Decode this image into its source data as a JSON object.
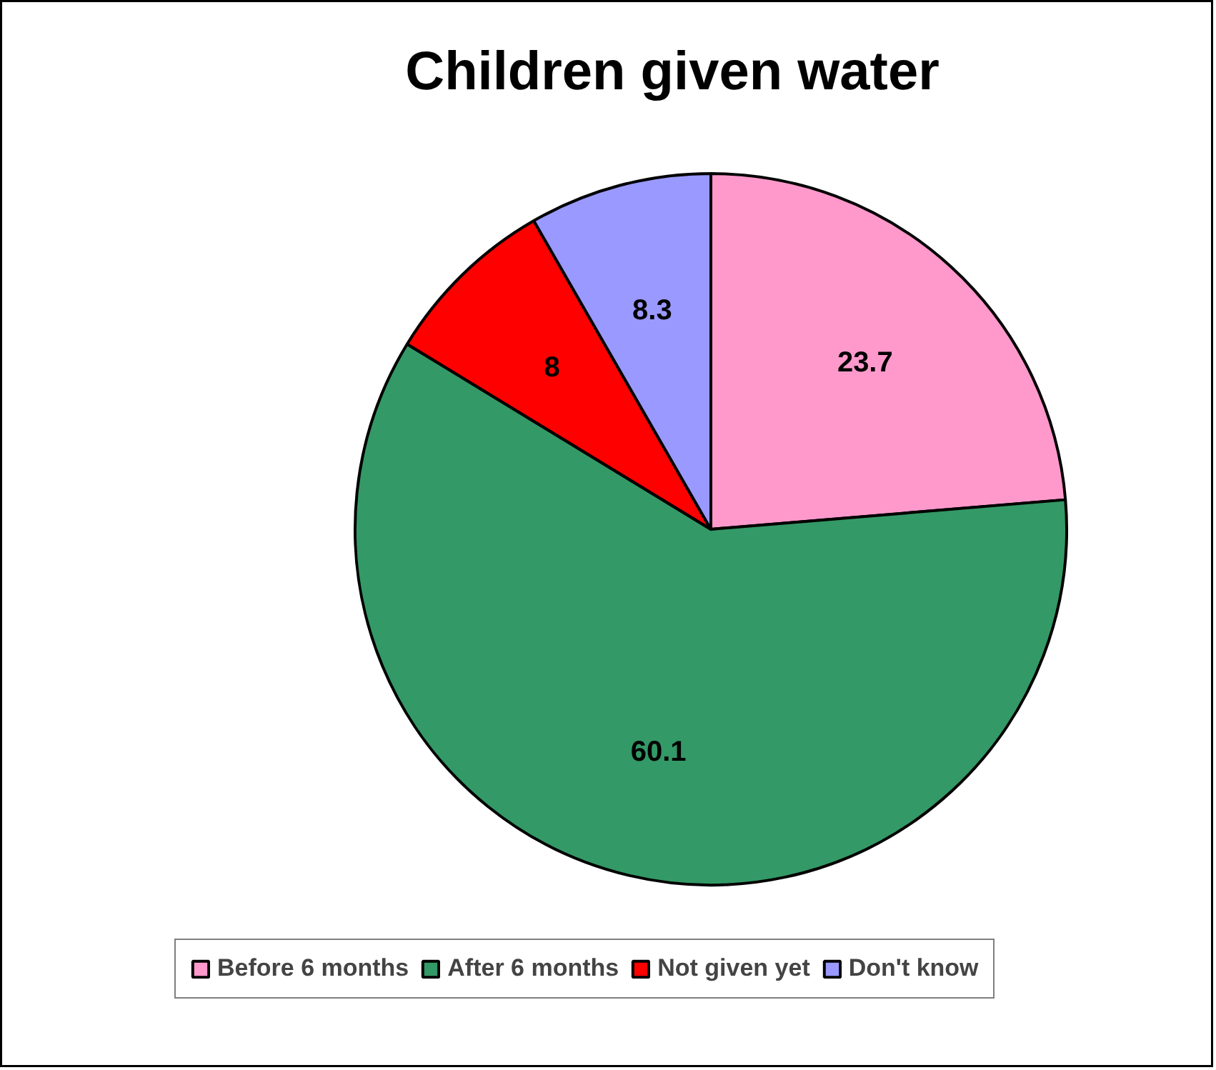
{
  "chart_data": {
    "type": "pie",
    "title": "Children given water",
    "categories": [
      "Before 6 months",
      "After 6 months",
      "Not given yet",
      "Don't know"
    ],
    "values": [
      23.7,
      60.1,
      8,
      8.3
    ],
    "colors": [
      "#ff99cc",
      "#339966",
      "#ff0000",
      "#9999ff"
    ],
    "data_labels": true,
    "legend": "bottom"
  }
}
